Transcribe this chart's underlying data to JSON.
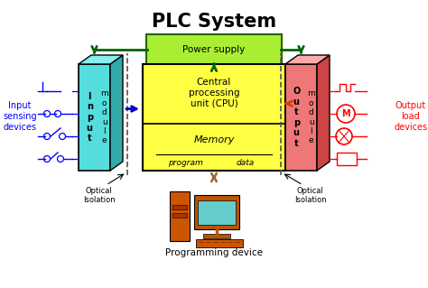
{
  "title": "PLC System",
  "title_fontsize": 15,
  "title_fontweight": "bold",
  "bg_color": "#ffffff",
  "input_module_color": "#55DDDD",
  "input_module_side_color": "#33AAAA",
  "input_module_top_color": "#88EEEE",
  "output_module_color": "#EE7777",
  "output_module_side_color": "#CC4444",
  "output_module_top_color": "#FFAAAA",
  "cpu_box_color": "#FFFF44",
  "power_supply_color": "#AAEE33",
  "power_supply_edge": "#226600",
  "input_label": "I\nn\np\nu\nt",
  "module_label": "m\no\nd\nu\nl\ne",
  "output_label": "O\nu\nt\np\nu\nt",
  "cpu_label": "Central\nprocessing\nunit (CPU)",
  "memory_label": "Memory",
  "program_label": "program",
  "data_label": "data",
  "power_supply_label": "Power supply",
  "input_sensing_label": "Input\nsensing\ndevices",
  "output_load_label": "Output\nload\ndevices",
  "optical_isolation_left": "Optical\nIsolation",
  "optical_isolation_right": "Optical\nIsolation",
  "programming_device_label": "Programming device",
  "arrow_green": "#006600",
  "arrow_blue": "#0000CC",
  "arrow_orange": "#CC4400",
  "arrow_brown": "#996633"
}
